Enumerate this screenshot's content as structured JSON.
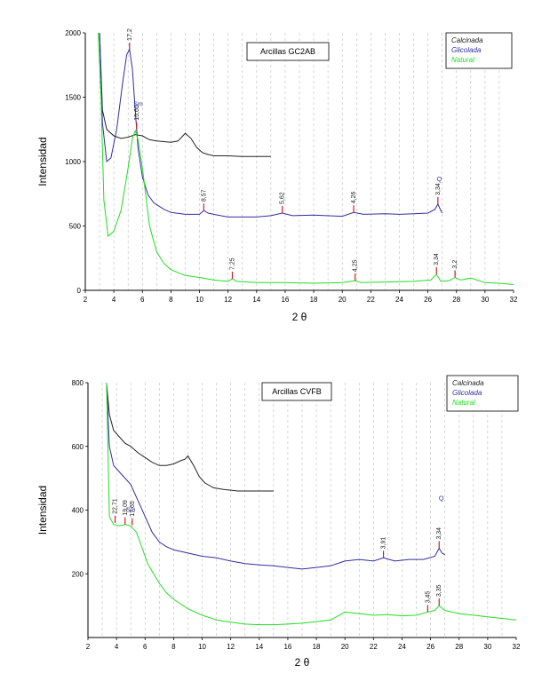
{
  "chart_data": [
    {
      "type": "line",
      "title": "Arcillas GC2AB",
      "xlabel": "2 θ",
      "ylabel": "Intensidad",
      "xlim": [
        2,
        32
      ],
      "ylim": [
        0,
        2000
      ],
      "xticks": [
        2,
        4,
        6,
        8,
        10,
        12,
        14,
        16,
        18,
        20,
        22,
        24,
        26,
        28,
        30,
        32
      ],
      "yticks": [
        0,
        500,
        1000,
        1500,
        2000
      ],
      "grid": "vertical-dashed",
      "legend_position": "top-right",
      "series": [
        {
          "name": "Calcinada",
          "color": "#222222",
          "x": [
            3.0,
            3.2,
            3.5,
            4.0,
            4.5,
            5.0,
            5.5,
            6.0,
            6.5,
            7.0,
            7.5,
            8.0,
            8.5,
            9.0,
            9.4,
            9.8,
            10.2,
            10.6,
            11.0,
            12.0,
            13.0,
            14.0,
            15.0
          ],
          "y": [
            2000,
            1400,
            1250,
            1200,
            1180,
            1190,
            1210,
            1200,
            1170,
            1160,
            1155,
            1150,
            1160,
            1220,
            1180,
            1110,
            1070,
            1055,
            1045,
            1045,
            1040,
            1040,
            1040
          ]
        },
        {
          "name": "Glicolada",
          "color": "#2f2f9f",
          "x": [
            3.0,
            3.2,
            3.5,
            3.8,
            4.2,
            4.6,
            4.9,
            5.1,
            5.3,
            5.5,
            5.7,
            6.0,
            6.4,
            6.8,
            7.5,
            8.0,
            9.0,
            10.0,
            10.3,
            10.6,
            11.0,
            12.0,
            13.0,
            14.0,
            15.0,
            15.8,
            16.5,
            18.0,
            20.0,
            20.8,
            21.5,
            23.0,
            24.0,
            25.0,
            26.0,
            26.5,
            26.7,
            26.9,
            27.0
          ],
          "y": [
            2000,
            1300,
            1000,
            1030,
            1250,
            1600,
            1830,
            1870,
            1720,
            1400,
            1100,
            880,
            740,
            680,
            630,
            605,
            590,
            590,
            620,
            600,
            590,
            570,
            570,
            570,
            580,
            600,
            580,
            585,
            575,
            605,
            590,
            595,
            590,
            595,
            600,
            630,
            670,
            620,
            600
          ]
        },
        {
          "name": "Natural",
          "color": "#22dd22",
          "x": [
            2.9,
            3.1,
            3.3,
            3.6,
            4.0,
            4.5,
            5.0,
            5.3,
            5.5,
            5.7,
            6.0,
            6.5,
            7.0,
            7.5,
            8.0,
            9.0,
            10.0,
            11.0,
            12.0,
            12.3,
            12.6,
            14.0,
            16.0,
            18.0,
            20.0,
            20.9,
            21.3,
            23.0,
            25.0,
            26.2,
            26.6,
            26.9,
            27.5,
            27.9,
            28.3,
            29.0,
            30.0,
            31.0,
            32.0
          ],
          "y": [
            2000,
            1500,
            700,
            420,
            460,
            620,
            950,
            1180,
            1240,
            1170,
            950,
            500,
            300,
            210,
            160,
            115,
            100,
            80,
            70,
            90,
            70,
            60,
            60,
            55,
            60,
            75,
            60,
            65,
            70,
            80,
            125,
            70,
            75,
            100,
            80,
            95,
            60,
            55,
            45
          ]
        }
      ],
      "annotations": [
        {
          "label": "17,2",
          "x": 5.1,
          "y": 1870,
          "color": "#333333"
        },
        {
          "label": "15,60",
          "x": 5.6,
          "y": 1250,
          "color": "#333333"
        },
        {
          "label": "Sm",
          "x": 5.7,
          "y": 1430,
          "color": "#2f2f9f"
        },
        {
          "label": "8,57",
          "x": 10.3,
          "y": 620,
          "color": "#333333"
        },
        {
          "label": "5,62",
          "x": 15.8,
          "y": 600,
          "color": "#333333"
        },
        {
          "label": "4,26",
          "x": 20.8,
          "y": 605,
          "color": "#333333"
        },
        {
          "label": "3,34",
          "x": 26.7,
          "y": 670,
          "color": "#333333"
        },
        {
          "label": "Q",
          "x": 26.8,
          "y": 850,
          "color": "#2f2f9f"
        },
        {
          "label": "7,25",
          "x": 12.3,
          "y": 90,
          "color": "#333333"
        },
        {
          "label": "4,25",
          "x": 20.9,
          "y": 75,
          "color": "#333333"
        },
        {
          "label": "3,34",
          "x": 26.6,
          "y": 125,
          "color": "#333333"
        },
        {
          "label": "3,2",
          "x": 27.9,
          "y": 100,
          "color": "#333333"
        }
      ]
    },
    {
      "type": "line",
      "title": "Arcillas CVFB",
      "xlabel": "2 θ",
      "ylabel": "Intensidad",
      "xlim": [
        2,
        32
      ],
      "ylim": [
        0,
        800
      ],
      "xticks": [
        2,
        4,
        6,
        8,
        10,
        12,
        14,
        16,
        18,
        20,
        22,
        24,
        26,
        28,
        30,
        32
      ],
      "yticks": [
        200,
        400,
        600,
        800
      ],
      "grid": "vertical-dashed",
      "legend_position": "top-right",
      "series": [
        {
          "name": "Calcinada",
          "color": "#222222",
          "x": [
            3.3,
            3.5,
            3.8,
            4.2,
            4.6,
            5.0,
            5.5,
            6.0,
            6.5,
            7.0,
            7.5,
            8.0,
            8.5,
            8.8,
            9.0,
            9.4,
            9.8,
            10.2,
            10.8,
            11.5,
            12.5,
            13.5,
            14.5,
            15.0
          ],
          "y": [
            800,
            700,
            650,
            630,
            610,
            600,
            580,
            565,
            550,
            540,
            540,
            545,
            555,
            560,
            570,
            540,
            505,
            485,
            470,
            465,
            460,
            460,
            460,
            460
          ]
        },
        {
          "name": "Glicolada",
          "color": "#2f2f9f",
          "x": [
            3.3,
            3.5,
            3.8,
            4.2,
            4.6,
            5.0,
            5.5,
            6.0,
            6.5,
            7.0,
            7.5,
            8.0,
            9.0,
            10.0,
            11.0,
            12.0,
            13.0,
            14.0,
            15.0,
            16.0,
            17.0,
            18.0,
            19.0,
            20.0,
            21.0,
            22.0,
            22.7,
            23.5,
            24.5,
            25.5,
            26.3,
            26.6,
            26.8,
            27.0
          ],
          "y": [
            800,
            600,
            540,
            520,
            500,
            480,
            430,
            380,
            330,
            300,
            285,
            275,
            265,
            255,
            250,
            240,
            232,
            228,
            225,
            220,
            215,
            220,
            225,
            240,
            245,
            240,
            250,
            240,
            245,
            245,
            255,
            280,
            265,
            260
          ]
        },
        {
          "name": "Natural",
          "color": "#22dd22",
          "x": [
            3.3,
            3.5,
            3.8,
            4.2,
            4.6,
            5.0,
            5.4,
            5.8,
            6.2,
            6.6,
            7.0,
            7.5,
            8.0,
            9.0,
            10.0,
            11.0,
            12.0,
            13.0,
            14.0,
            15.0,
            16.0,
            17.0,
            18.0,
            19.0,
            19.6,
            20.0,
            21.0,
            22.0,
            23.0,
            24.0,
            25.0,
            25.8,
            26.3,
            26.6,
            27.0,
            28.0,
            29.0,
            30.0,
            31.0,
            32.0
          ],
          "y": [
            800,
            380,
            355,
            350,
            355,
            350,
            330,
            280,
            230,
            200,
            170,
            140,
            120,
            90,
            70,
            55,
            48,
            42,
            40,
            40,
            42,
            45,
            50,
            55,
            70,
            80,
            75,
            70,
            72,
            68,
            70,
            80,
            85,
            100,
            85,
            75,
            70,
            65,
            60,
            55
          ]
        }
      ],
      "annotations": [
        {
          "label": "22,71",
          "x": 3.9,
          "y": 360,
          "color": "#333333"
        },
        {
          "label": "Sm",
          "x": 5.0,
          "y": 395,
          "color": "#2f2f9f"
        },
        {
          "label": "19,09",
          "x": 4.6,
          "y": 355,
          "color": "#333333"
        },
        {
          "label": "17,65",
          "x": 5.1,
          "y": 352,
          "color": "#333333"
        },
        {
          "label": "3,91",
          "x": 22.7,
          "y": 250,
          "color": "#333333"
        },
        {
          "label": "3,34",
          "x": 26.6,
          "y": 280,
          "color": "#333333"
        },
        {
          "label": "Q",
          "x": 26.75,
          "y": 430,
          "color": "#2f2f9f"
        },
        {
          "label": "3,45",
          "x": 25.8,
          "y": 80,
          "color": "#333333"
        },
        {
          "label": "3,35",
          "x": 26.6,
          "y": 100,
          "color": "#333333"
        }
      ]
    }
  ]
}
